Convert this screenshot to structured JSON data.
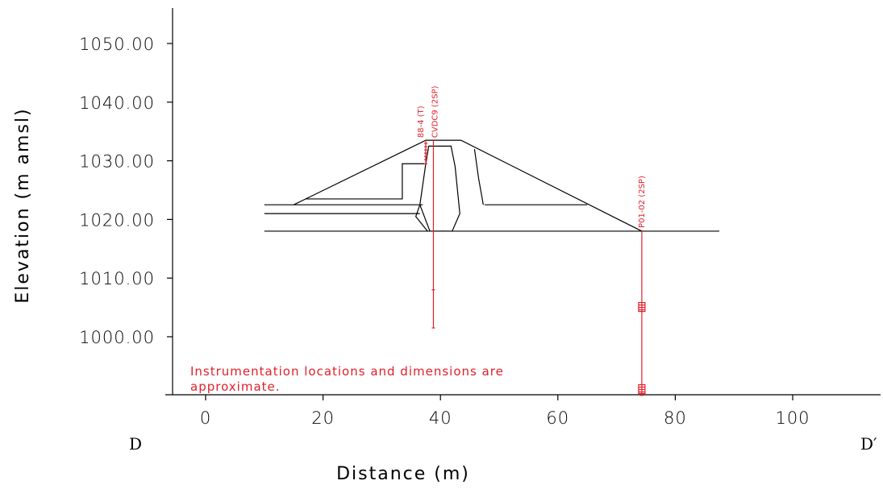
{
  "chart_data": {
    "type": "line",
    "title": "",
    "xlabel": "Distance (m)",
    "ylabel": "Elevation (m amsl)",
    "x_ticks": [
      "0",
      "20",
      "40",
      "60",
      "80",
      "100"
    ],
    "x_tick_values": [
      0,
      20,
      40,
      60,
      80,
      100
    ],
    "y_ticks": [
      "1000.00",
      "1010.00",
      "1020.00",
      "1030.00",
      "1040.00",
      "1050.00"
    ],
    "y_tick_values": [
      1000,
      1010,
      1020,
      1030,
      1040,
      1050
    ],
    "xlim": [
      -6,
      115
    ],
    "ylim": [
      990,
      1057
    ],
    "grid": false,
    "section_labels": {
      "left": "D",
      "right": "D′"
    },
    "note": [
      "Instrumentation locations and dimensions are",
      "approximate."
    ],
    "ground_line": {
      "x": [
        10,
        87.5
      ],
      "y": [
        1018,
        1018
      ]
    },
    "dam_profile": {
      "outer": {
        "x": [
          15,
          37.5,
          43.5,
          74.3
        ],
        "y": [
          1022.5,
          1033.5,
          1033.5,
          1018
        ]
      },
      "core": {
        "x": [
          37.8,
          36.5,
          37.5,
          38,
          41,
          42.5,
          43.3,
          47.5,
          46,
          40.4,
          38.2,
          37.5
        ],
        "y": [
          1018,
          1022.5,
          1029.5,
          1032.5,
          1032.5,
          1028,
          1021,
          1018,
          1031.5,
          1018,
          1018,
          1018
        ]
      },
      "left_berm": {
        "x": [
          10,
          37
        ],
        "y": [
          1022.5,
          1022.5
        ]
      },
      "left_filter": {
        "x": [
          10,
          36.5
        ],
        "y": [
          1021,
          1021
        ]
      },
      "upstream_shell": {
        "x": [
          17,
          33.5,
          33.5,
          37.3
        ],
        "y": [
          1023.5,
          1023.5,
          1029.5,
          1029.5
        ]
      },
      "downstream_berm": {
        "x": [
          47.5,
          65
        ],
        "y": [
          1022.5,
          1022.5
        ]
      }
    },
    "instruments": [
      {
        "name": "88-4 (T)",
        "x": 37.5,
        "top": 1033.5,
        "bottom": 1029.5,
        "type": "thermistor"
      },
      {
        "name": "CVDC9 (2SP)",
        "x": 38.8,
        "top": 1033.5,
        "bottom": 1001.5,
        "sensors": [
          1008
        ]
      },
      {
        "name": "P01-02 (2SP)",
        "x": 74.3,
        "top": 1018,
        "bottom": 990,
        "sensors": [
          1005,
          991
        ]
      }
    ]
  }
}
